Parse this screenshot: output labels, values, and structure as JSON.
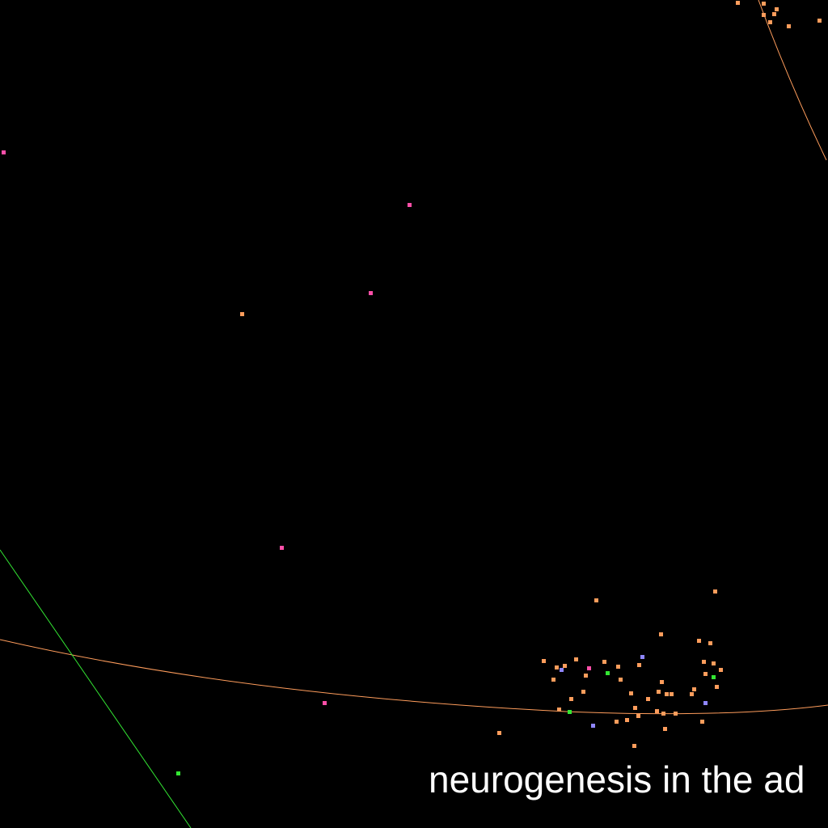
{
  "caption": "neurogenesis in the ad",
  "colors": {
    "background": "#000000",
    "orange": "#ff9d5c",
    "pink": "#ff4fa8",
    "green": "#33e633",
    "violet": "#8f86ff",
    "caption": "#ffffff"
  }
}
